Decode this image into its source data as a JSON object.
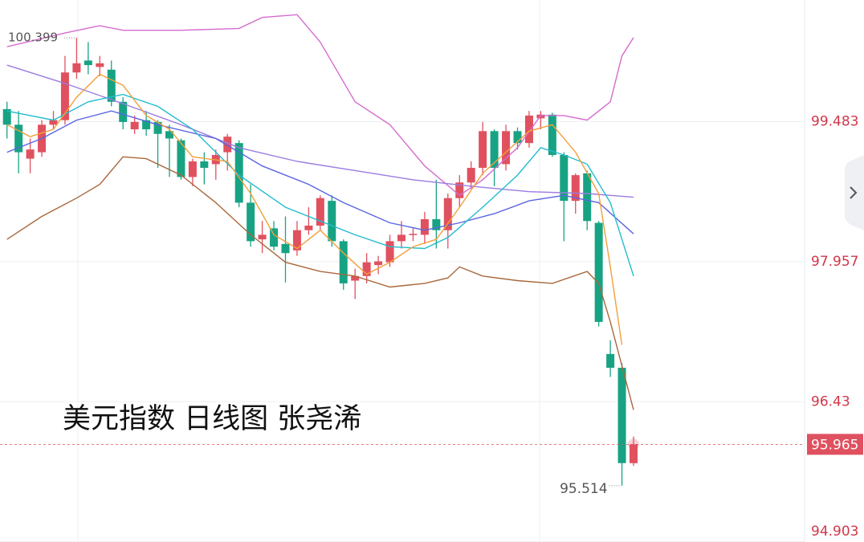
{
  "chart_data": {
    "type": "candlestick",
    "title": "美元指数 日线图 张尧浠",
    "up_color": "#e0515f",
    "down_color": "#17a383",
    "ylim": [
      94.9,
      100.81
    ],
    "yticks": [
      99.483,
      97.957,
      96.43,
      94.903
    ],
    "grid": true,
    "high_label": 100.399,
    "low_label": 95.514,
    "current_price": 95.965,
    "open": [
      99.62,
      99.45,
      99.08,
      99.15,
      99.45,
      99.5,
      100.02,
      100.15,
      100.08,
      100.05,
      99.7,
      99.4,
      99.5,
      99.48,
      99.38,
      99.28,
      98.88,
      99.05,
      99.02,
      99.15,
      99.25,
      98.6,
      98.2,
      98.32,
      98.15,
      98.08,
      98.3,
      98.35,
      98.62,
      98.18,
      97.75,
      97.8,
      97.92,
      97.95,
      98.18,
      98.25,
      98.25,
      98.42,
      98.3,
      98.65,
      98.82,
      98.98,
      99.38,
      99.02,
      99.38,
      99.25,
      99.52,
      99.56,
      99.12,
      98.62,
      98.92,
      98.38,
      96.95,
      96.8,
      95.76
    ],
    "high": [
      99.7,
      99.6,
      99.3,
      99.5,
      99.6,
      100.2,
      100.399,
      100.35,
      100.2,
      100.15,
      99.75,
      99.55,
      99.6,
      99.5,
      99.45,
      99.3,
      99.08,
      99.15,
      99.18,
      99.35,
      99.28,
      98.8,
      98.4,
      98.4,
      98.45,
      98.4,
      98.55,
      98.68,
      98.68,
      98.2,
      97.88,
      98.05,
      98.02,
      98.25,
      98.4,
      98.32,
      98.5,
      98.85,
      98.7,
      98.9,
      99.05,
      99.48,
      99.4,
      99.45,
      99.42,
      99.6,
      99.6,
      99.58,
      99.15,
      98.92,
      98.95,
      98.4,
      97.1,
      96.85,
      96.05
    ],
    "low": [
      99.3,
      98.92,
      98.92,
      99.1,
      99.4,
      99.45,
      99.95,
      100.0,
      99.98,
      99.65,
      99.4,
      99.35,
      99.33,
      98.98,
      98.88,
      98.85,
      98.78,
      98.8,
      98.85,
      98.95,
      98.55,
      98.12,
      98.05,
      98.08,
      97.73,
      98.02,
      98.25,
      98.3,
      98.12,
      97.65,
      97.55,
      97.72,
      97.82,
      97.9,
      98.1,
      98.18,
      98.15,
      98.1,
      98.1,
      98.55,
      98.75,
      98.9,
      98.78,
      98.95,
      99.18,
      99.2,
      99.4,
      99.1,
      98.18,
      98.48,
      98.3,
      97.25,
      96.7,
      95.514,
      95.73
    ],
    "close": [
      99.45,
      99.15,
      99.18,
      99.45,
      99.5,
      100.02,
      100.12,
      100.1,
      100.12,
      99.7,
      99.48,
      99.48,
      99.4,
      99.35,
      99.3,
      98.88,
      99.05,
      98.98,
      99.12,
      99.32,
      98.6,
      98.18,
      98.25,
      98.12,
      98.05,
      98.3,
      98.35,
      98.65,
      98.18,
      97.72,
      97.8,
      97.95,
      97.96,
      98.18,
      98.25,
      98.26,
      98.42,
      98.3,
      98.65,
      98.82,
      98.98,
      99.38,
      98.98,
      99.38,
      99.25,
      99.55,
      99.56,
      99.12,
      98.62,
      98.9,
      98.4,
      97.3,
      96.8,
      95.76,
      95.965
    ],
    "lines": [
      {
        "color": "#d56ccf",
        "x": [
          0,
          5,
          8,
          10,
          15,
          20,
          22,
          25,
          27,
          30,
          33,
          36,
          39,
          41,
          44,
          46,
          48,
          50,
          52,
          53,
          54
        ],
        "values": [
          100.3,
          100.45,
          100.53,
          100.48,
          100.48,
          100.5,
          100.62,
          100.65,
          100.35,
          99.7,
          99.45,
          99.0,
          98.68,
          98.85,
          99.2,
          99.55,
          99.55,
          99.5,
          99.7,
          100.2,
          100.4
        ]
      },
      {
        "color": "#a9683c",
        "x": [
          0,
          3,
          6,
          8,
          10,
          12,
          15,
          18,
          21,
          24,
          27,
          30,
          33,
          36,
          38,
          39,
          41,
          44,
          47,
          50,
          51,
          52,
          54
        ],
        "values": [
          98.2,
          98.45,
          98.65,
          98.8,
          99.1,
          99.08,
          98.9,
          98.6,
          98.25,
          97.95,
          97.85,
          97.8,
          97.68,
          97.72,
          97.78,
          97.9,
          97.8,
          97.75,
          97.72,
          97.85,
          97.72,
          97.3,
          96.34
        ]
      },
      {
        "color": "#9b7be0",
        "x": [
          0,
          5,
          10,
          15,
          20,
          25,
          30,
          35,
          40,
          45,
          50,
          54
        ],
        "values": [
          100.1,
          99.9,
          99.68,
          99.45,
          99.2,
          99.05,
          98.95,
          98.85,
          98.78,
          98.72,
          98.7,
          98.66
        ]
      },
      {
        "color": "#5a64e0",
        "x": [
          0,
          3,
          6,
          9,
          13,
          18,
          22,
          26,
          29,
          33,
          36,
          39,
          42,
          45,
          48,
          51,
          54
        ],
        "values": [
          99.15,
          99.3,
          99.5,
          99.6,
          99.45,
          99.3,
          99.0,
          98.8,
          98.6,
          98.38,
          98.3,
          98.38,
          98.48,
          98.62,
          98.68,
          98.6,
          98.26
        ]
      },
      {
        "color": "#22bcd0",
        "x": [
          0,
          2,
          4,
          7,
          10,
          13,
          16,
          20,
          24,
          27,
          30,
          33,
          36,
          38,
          41,
          44,
          46,
          48,
          50,
          52,
          54
        ],
        "values": [
          99.6,
          99.55,
          99.5,
          99.7,
          99.78,
          99.65,
          99.4,
          98.9,
          98.55,
          98.4,
          98.25,
          98.12,
          98.1,
          98.22,
          98.55,
          98.9,
          99.2,
          99.12,
          99.02,
          98.6,
          97.8
        ]
      },
      {
        "color": "#f2a03c",
        "x": [
          0,
          2,
          4,
          6,
          8,
          10,
          12,
          14,
          16,
          19,
          21,
          23,
          25,
          27,
          29,
          31,
          33,
          35,
          37,
          39,
          41,
          43,
          45,
          47,
          49,
          51,
          52,
          53
        ],
        "values": [
          99.45,
          99.32,
          99.4,
          99.75,
          100.0,
          99.88,
          99.55,
          99.4,
          99.1,
          99.05,
          98.7,
          98.25,
          98.1,
          98.3,
          98.05,
          97.82,
          97.95,
          98.12,
          98.2,
          98.55,
          98.92,
          99.15,
          99.38,
          99.45,
          99.15,
          98.7,
          97.9,
          97.05
        ]
      }
    ]
  }
}
